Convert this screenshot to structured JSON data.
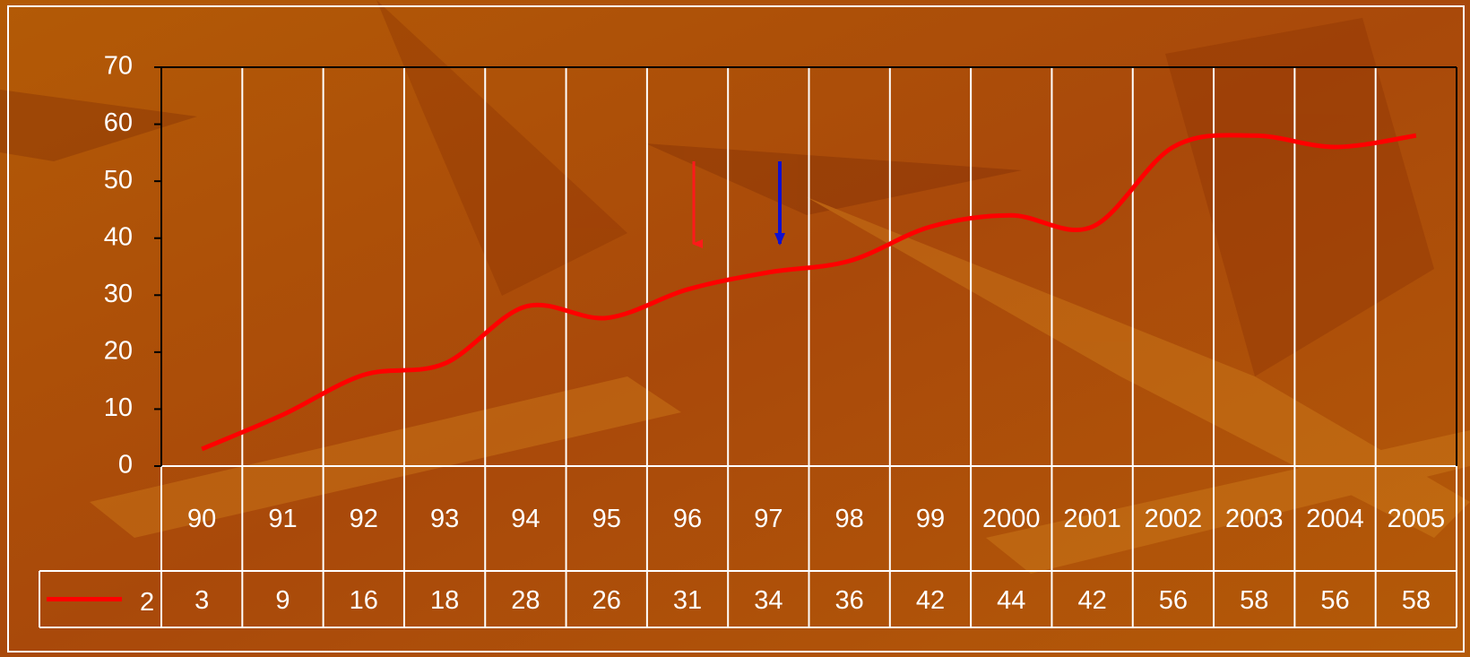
{
  "chart_data": {
    "type": "line",
    "categories": [
      "90",
      "91",
      "92",
      "93",
      "94",
      "95",
      "96",
      "97",
      "98",
      "99",
      "2000",
      "2001",
      "2002",
      "2003",
      "2004",
      "2005"
    ],
    "series": [
      {
        "name": "2",
        "color": "#ff0000",
        "values": [
          3,
          9,
          16,
          18,
          28,
          26,
          31,
          34,
          36,
          42,
          44,
          42,
          56,
          58,
          56,
          58
        ]
      }
    ],
    "ylim": [
      0,
      70
    ],
    "yticks": [
      0,
      10,
      20,
      30,
      40,
      50,
      60,
      70
    ],
    "grid": true,
    "smooth": true
  }
}
